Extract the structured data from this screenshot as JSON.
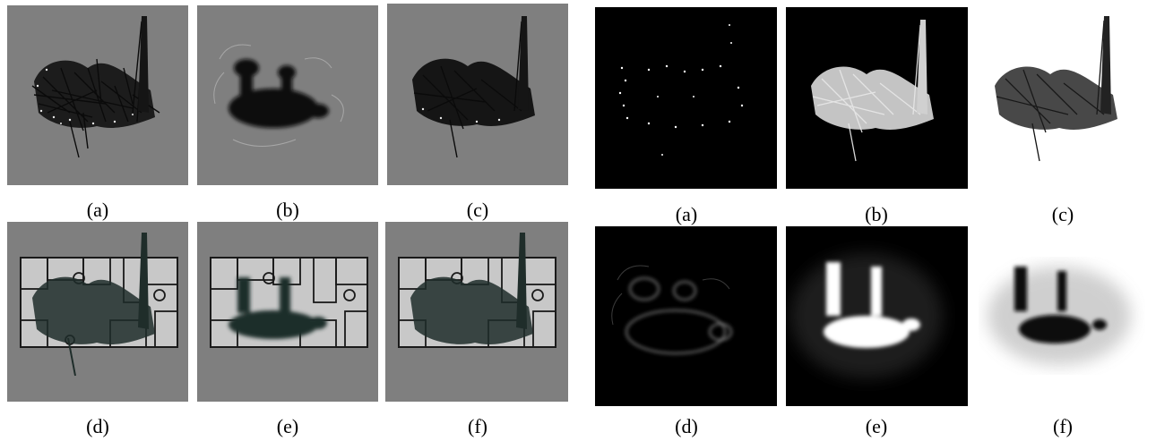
{
  "left_figure": {
    "captions": {
      "a": "(a)",
      "b": "(b)",
      "c": "(c)",
      "d": "(d)",
      "e": "(e)",
      "f": "(f)"
    }
  },
  "right_figure": {
    "captions": {
      "a": "(a)",
      "b": "(b)",
      "c": "(c)",
      "d": "(d)",
      "e": "(e)",
      "f": "(f)"
    }
  },
  "colors": {
    "gray_bg": "#7f7f7f",
    "black_bg": "#000000",
    "white_bg": "#ffffff",
    "dark_mass": "#111111",
    "teal_mass": "#1f2d2a",
    "plan_fill": "#c8c8c8",
    "plan_line": "#1a1a1a"
  }
}
